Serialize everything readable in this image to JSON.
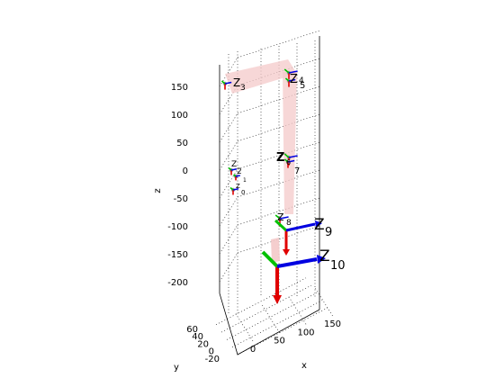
{
  "chart_data": {
    "type": "robot-kinematics-3d",
    "xlabel": "x",
    "ylabel": "y",
    "zlabel": "z",
    "xlim": [
      -20,
      170
    ],
    "ylim": [
      -20,
      65
    ],
    "zlim": [
      -240,
      170
    ],
    "z_ticks": [
      -200,
      -150,
      -100,
      -50,
      0,
      50,
      100,
      150
    ],
    "x_ticks": [
      0,
      50,
      100,
      150
    ],
    "y_ticks": [
      -20,
      0,
      20,
      40,
      60
    ],
    "grid": true,
    "frame_labels": [
      {
        "main": "Z",
        "sub": "3"
      },
      {
        "main": "Z",
        "sub": "4"
      },
      {
        "main": "Z",
        "sub": "5"
      },
      {
        "main": "Z",
        "sub": "2"
      },
      {
        "main": "Z",
        "sub": "1"
      },
      {
        "main": "Z",
        "sub": "0"
      },
      {
        "main": "Z",
        "sub": "6"
      },
      {
        "main": "Z",
        "sub": "7"
      },
      {
        "main": "Z",
        "sub": "8"
      },
      {
        "main": "Z",
        "sub": "9"
      },
      {
        "main": "Z",
        "sub": "10"
      }
    ],
    "colors": {
      "link_fill": "#f4c9c9",
      "x_axis": "#e00000",
      "y_axis": "#00c000",
      "z_axis": "#0000e0",
      "joint": "#9a9a9a"
    }
  }
}
